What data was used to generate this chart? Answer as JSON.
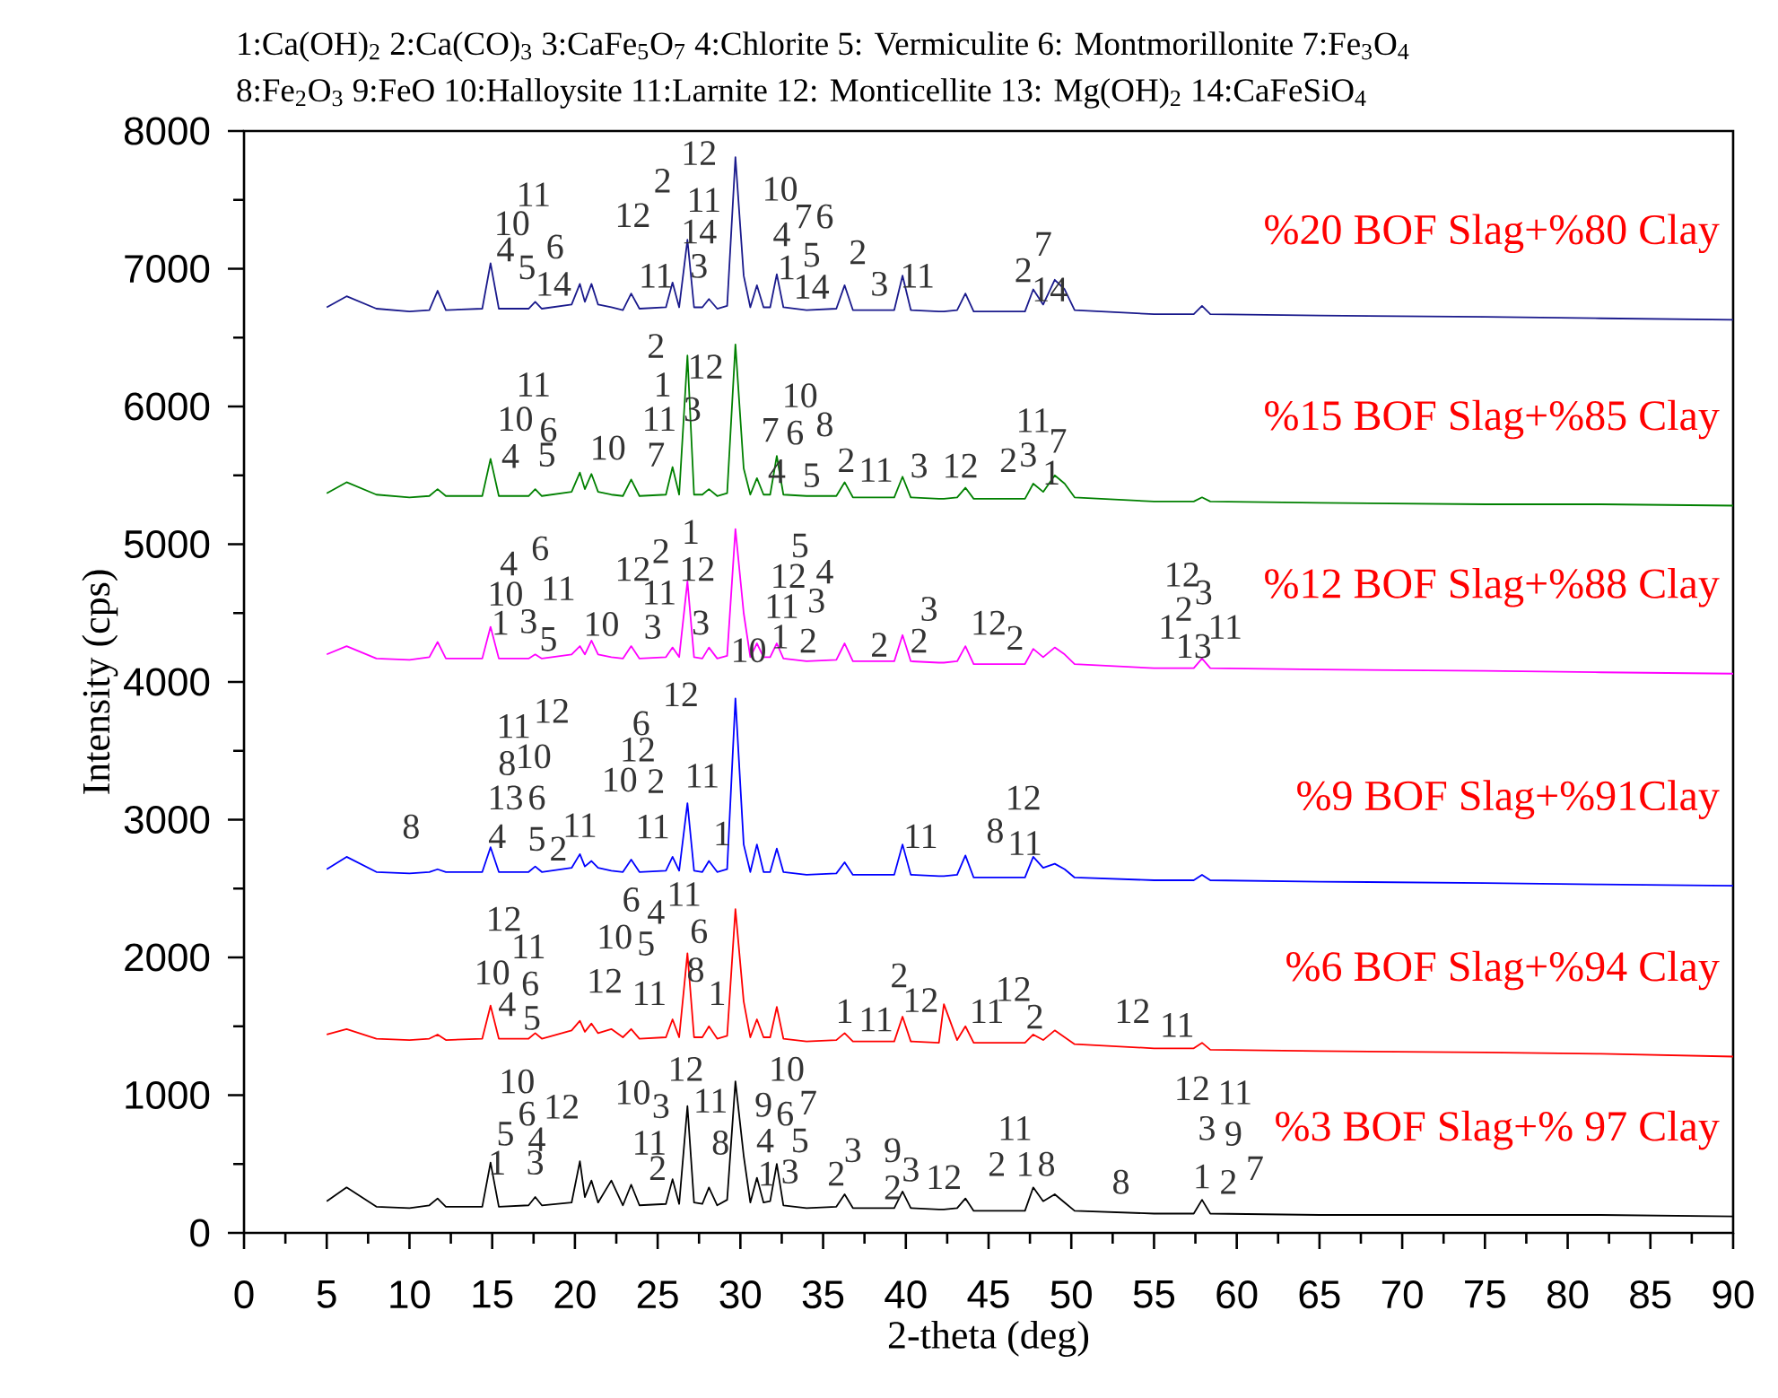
{
  "chart_data": {
    "type": "line",
    "xlabel": "2-theta (deg)",
    "ylabel": "Intensity (cps)",
    "xlim": [
      0,
      90
    ],
    "ylim": [
      0,
      8000
    ],
    "xticks": [
      0,
      5,
      10,
      15,
      20,
      25,
      30,
      35,
      40,
      45,
      50,
      55,
      60,
      65,
      70,
      75,
      80,
      85,
      90
    ],
    "yticks": [
      0,
      1000,
      2000,
      3000,
      4000,
      5000,
      6000,
      7000,
      8000
    ],
    "marker": "none",
    "grid": false,
    "x": [
      5,
      6.2,
      8,
      10,
      11.2,
      11.7,
      12.2,
      14.4,
      14.9,
      15.4,
      17.2,
      17.6,
      18,
      19.8,
      20.3,
      20.6,
      21,
      21.4,
      22.2,
      22.9,
      23.4,
      23.9,
      25.5,
      25.9,
      26.3,
      26.8,
      27.2,
      27.7,
      28.1,
      28.6,
      29.2,
      29.7,
      30.2,
      30.6,
      31,
      31.4,
      31.8,
      32.2,
      32.6,
      34,
      35.8,
      36.3,
      36.8,
      39.3,
      39.8,
      40.3,
      42,
      42.3,
      43.1,
      43.6,
      44.1,
      47.2,
      47.7,
      48.3,
      49,
      49.6,
      50.2,
      55,
      57.4,
      57.9,
      58.4,
      65,
      75,
      82,
      90
    ],
    "series": [
      {
        "name": "%20 BOF Slag+%80 Clay",
        "color": "#1a1a8c",
        "values": [
          6720,
          6800,
          6710,
          6690,
          6700,
          6840,
          6700,
          6710,
          7040,
          6710,
          6710,
          6760,
          6710,
          6740,
          6890,
          6760,
          6890,
          6740,
          6720,
          6700,
          6820,
          6710,
          6720,
          6900,
          6720,
          7210,
          6720,
          6720,
          6780,
          6710,
          6730,
          7810,
          6950,
          6720,
          6880,
          6720,
          6720,
          6960,
          6720,
          6700,
          6710,
          6880,
          6700,
          6700,
          6950,
          6700,
          6690,
          6690,
          6700,
          6820,
          6690,
          6690,
          6850,
          6740,
          6920,
          6850,
          6700,
          6670,
          6670,
          6730,
          6670,
          6660,
          6650,
          6640,
          6630
        ]
      },
      {
        "name": "%15 BOF Slag+%85 Clay",
        "color": "#008000",
        "values": [
          5370,
          5450,
          5360,
          5340,
          5350,
          5400,
          5350,
          5350,
          5620,
          5350,
          5350,
          5400,
          5350,
          5380,
          5520,
          5400,
          5510,
          5380,
          5360,
          5350,
          5470,
          5350,
          5360,
          5560,
          5360,
          6370,
          5360,
          5360,
          5400,
          5350,
          5370,
          6450,
          5550,
          5360,
          5480,
          5360,
          5360,
          5640,
          5360,
          5350,
          5350,
          5450,
          5340,
          5340,
          5490,
          5340,
          5330,
          5330,
          5340,
          5410,
          5330,
          5330,
          5440,
          5380,
          5500,
          5440,
          5340,
          5310,
          5310,
          5340,
          5310,
          5300,
          5290,
          5290,
          5280
        ]
      },
      {
        "name": "%12 BOF Slag+%88 Clay",
        "color": "#ff00ff",
        "values": [
          4200,
          4260,
          4170,
          4160,
          4180,
          4290,
          4170,
          4170,
          4400,
          4170,
          4170,
          4200,
          4170,
          4200,
          4260,
          4200,
          4300,
          4200,
          4180,
          4170,
          4260,
          4170,
          4180,
          4250,
          4180,
          4730,
          4180,
          4170,
          4250,
          4170,
          4190,
          5110,
          4500,
          4180,
          4280,
          4180,
          4180,
          4280,
          4170,
          4150,
          4160,
          4280,
          4150,
          4150,
          4340,
          4150,
          4140,
          4140,
          4150,
          4260,
          4130,
          4130,
          4240,
          4180,
          4250,
          4200,
          4130,
          4100,
          4100,
          4170,
          4100,
          4090,
          4080,
          4070,
          4060
        ]
      },
      {
        "name": "%9 BOF Slag+%91Clay",
        "color": "#0000ff",
        "values": [
          2640,
          2730,
          2620,
          2610,
          2620,
          2640,
          2620,
          2620,
          2800,
          2620,
          2620,
          2660,
          2620,
          2650,
          2750,
          2660,
          2700,
          2650,
          2630,
          2620,
          2710,
          2620,
          2630,
          2730,
          2630,
          3120,
          2630,
          2620,
          2700,
          2620,
          2640,
          3880,
          2820,
          2620,
          2820,
          2620,
          2620,
          2790,
          2620,
          2600,
          2610,
          2690,
          2600,
          2600,
          2820,
          2600,
          2590,
          2590,
          2600,
          2740,
          2580,
          2580,
          2730,
          2650,
          2680,
          2640,
          2580,
          2560,
          2560,
          2600,
          2560,
          2550,
          2540,
          2530,
          2520
        ]
      },
      {
        "name": "%6 BOF Slag+%94 Clay",
        "color": "#ff0000",
        "values": [
          1440,
          1480,
          1410,
          1400,
          1410,
          1440,
          1400,
          1410,
          1650,
          1410,
          1410,
          1450,
          1410,
          1470,
          1540,
          1460,
          1520,
          1450,
          1480,
          1420,
          1480,
          1410,
          1420,
          1550,
          1420,
          2030,
          1420,
          1420,
          1500,
          1410,
          1430,
          2350,
          1680,
          1420,
          1550,
          1420,
          1420,
          1640,
          1410,
          1390,
          1400,
          1450,
          1390,
          1390,
          1570,
          1390,
          1380,
          1660,
          1400,
          1500,
          1380,
          1380,
          1440,
          1400,
          1470,
          1420,
          1370,
          1340,
          1340,
          1380,
          1330,
          1320,
          1310,
          1300,
          1280
        ]
      },
      {
        "name": "%3 BOF Slag+% 97 Clay",
        "color": "#000000",
        "values": [
          230,
          330,
          190,
          180,
          200,
          250,
          190,
          190,
          510,
          190,
          200,
          260,
          200,
          220,
          520,
          260,
          380,
          220,
          380,
          200,
          350,
          200,
          210,
          390,
          210,
          920,
          220,
          210,
          330,
          200,
          240,
          1100,
          560,
          220,
          400,
          220,
          230,
          500,
          200,
          180,
          190,
          280,
          180,
          180,
          300,
          180,
          170,
          170,
          180,
          250,
          160,
          160,
          330,
          230,
          280,
          220,
          160,
          140,
          140,
          240,
          140,
          130,
          130,
          130,
          120
        ]
      }
    ],
    "annotations": [
      "1:Ca(OH)$_{2}$  2:Ca(CO)$_{3}$  3:CaFe$_{5}$O$_{7}$  4:Chlorite  5: Vermiculite  6: Montmorillonite  7:Fe$_{3}$O$_{4}$",
      "8:Fe$_{2}$O$_{3}$  9:FeO  10:Halloysite  11:Larnite  12: Monticellite  13: Mg(OH)$_{2}$  14:CaFeSiO$_{4}$",
      "12",
      "2",
      "12",
      "11",
      "10",
      "4",
      "5",
      "6",
      "14",
      "11",
      "11",
      "14",
      "3",
      "10",
      "7",
      "6",
      "4",
      "1",
      "5",
      "14",
      "2",
      "3",
      "11",
      "7",
      "2",
      "14",
      "2",
      "1",
      "11",
      "3",
      "12",
      "11",
      "10",
      "6",
      "4",
      "5",
      "10",
      "7",
      "10",
      "7",
      "6",
      "8",
      "4",
      "5",
      "2",
      "11",
      "3",
      "12",
      "2",
      "3",
      "11",
      "7",
      "1",
      "1",
      "12",
      "12",
      "2",
      "4",
      "6",
      "10",
      "11",
      "1",
      "3",
      "5",
      "10",
      "11",
      "3",
      "3",
      "5",
      "12",
      "4",
      "11",
      "3",
      "10",
      "1",
      "2",
      "2",
      "2",
      "3",
      "12",
      "2",
      "12",
      "3",
      "2",
      "1",
      "13",
      "11",
      "12",
      "11",
      "12",
      "6",
      "8",
      "10",
      "12",
      "10",
      "2",
      "11",
      "13",
      "6",
      "8",
      "4",
      "5",
      "2",
      "11",
      "11",
      "1",
      "11",
      "12",
      "8",
      "11",
      "6",
      "4",
      "11",
      "10",
      "5",
      "6",
      "12",
      "11",
      "10",
      "6",
      "4",
      "5",
      "12",
      "11",
      "8",
      "1",
      "1",
      "11",
      "2",
      "12",
      "11",
      "12",
      "2",
      "12",
      "11",
      "10",
      "6",
      "12",
      "5",
      "4",
      "1",
      "3",
      "10",
      "3",
      "11",
      "2",
      "12",
      "11",
      "8",
      "10",
      "9",
      "6",
      "7",
      "4",
      "5",
      "1",
      "3",
      "2",
      "3",
      "9",
      "3",
      "2",
      "12",
      "11",
      "2",
      "1",
      "8",
      "8",
      "12",
      "11",
      "3",
      "9",
      "1",
      "2",
      "7"
    ]
  }
}
